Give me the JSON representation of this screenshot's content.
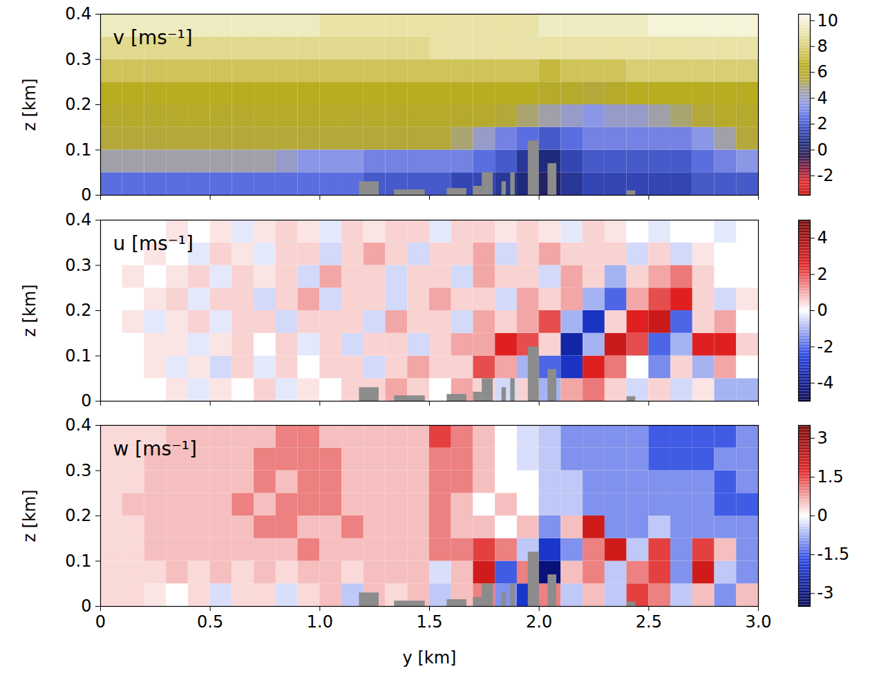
{
  "chart_data": [
    {
      "type": "heatmap",
      "title": "v [ms⁻¹]",
      "ylabel": "z [km]",
      "tick_labels": "y",
      "xlim": [
        0,
        3
      ],
      "xticks": [
        0,
        0.5,
        {
          "value": 1,
          "label": "1.0"
        },
        1.5,
        {
          "value": 2,
          "label": "2.0"
        },
        2.5,
        {
          "value": 3,
          "label": "3.0"
        }
      ],
      "ylim": [
        0,
        0.4
      ],
      "yticks": [
        0,
        0.1,
        0.2,
        0.3,
        0.4
      ],
      "x_edges": [
        0,
        0.1,
        0.2,
        0.3,
        0.4,
        0.5,
        0.6,
        0.7,
        0.8,
        0.9,
        1,
        1.1,
        1.2,
        1.3,
        1.4,
        1.5,
        1.6,
        1.7,
        1.8,
        1.9,
        2,
        2.1,
        2.2,
        2.3,
        2.4,
        2.5,
        2.6,
        2.7,
        2.8,
        2.9,
        3
      ],
      "y_edges": [
        0,
        0.05,
        0.1,
        0.15,
        0.2,
        0.25,
        0.3,
        0.35,
        0.4
      ],
      "cells": [
        [
          2.5,
          2.5,
          2.5,
          2.5,
          2.5,
          2.5,
          2.5,
          2.5,
          2.5,
          2.5,
          2.5,
          2.5,
          2,
          2,
          2,
          2,
          1.5,
          1.5,
          1,
          0.5,
          0,
          1,
          1.5,
          1.5,
          1.5,
          1.5,
          1.5,
          2,
          2,
          2
        ],
        [
          4.5,
          4.5,
          4.5,
          4.5,
          4.5,
          4.5,
          4.5,
          4.5,
          4,
          3.5,
          3.5,
          3.5,
          3,
          3,
          3,
          3,
          3,
          2.5,
          2,
          1,
          0.5,
          1.5,
          2,
          2,
          2,
          2,
          2,
          2.5,
          3,
          3.5
        ],
        [
          5.5,
          5.5,
          5.5,
          5.5,
          5.5,
          5.5,
          5.5,
          5.5,
          5.5,
          5.5,
          5.5,
          5.5,
          5.5,
          5.5,
          5.5,
          5.5,
          5,
          4,
          3,
          2.5,
          2,
          2.5,
          3,
          3,
          3,
          3,
          3,
          3.5,
          4.5,
          5.5
        ],
        [
          6,
          6,
          6,
          6,
          6,
          6,
          6,
          6,
          6,
          6,
          6,
          6,
          6,
          6,
          6,
          6,
          6,
          6,
          5.5,
          5,
          4.5,
          4,
          3.5,
          4,
          4,
          4.5,
          5,
          5.5,
          6,
          6
        ],
        [
          6.5,
          6.5,
          6.5,
          6.5,
          6.5,
          6.5,
          6.5,
          6.5,
          6.5,
          6.5,
          6.5,
          6.5,
          6.5,
          6.5,
          6.5,
          6.5,
          6.5,
          6.5,
          6.5,
          6.5,
          6,
          6,
          5.5,
          6,
          6.5,
          6.5,
          6.5,
          6.5,
          6.5,
          6.5
        ],
        [
          7.5,
          7.5,
          7.5,
          7.5,
          7.5,
          7.5,
          7.5,
          7.5,
          7.5,
          7.5,
          7.5,
          7.5,
          7.5,
          7.5,
          7.5,
          7.5,
          7.5,
          7.5,
          7.5,
          7.5,
          7,
          7.5,
          7.5,
          7.5,
          8,
          8,
          8,
          8,
          8,
          8
        ],
        [
          8.5,
          8.5,
          8.5,
          8.5,
          8.5,
          8.5,
          8.5,
          8.5,
          8.5,
          8.5,
          8.5,
          8.5,
          8.5,
          8.5,
          8.5,
          9,
          9,
          9,
          9,
          9,
          9,
          9,
          9,
          9,
          9,
          9,
          9,
          9,
          9,
          9
        ],
        [
          9.5,
          9.5,
          9.5,
          9.5,
          9.5,
          9.5,
          9.5,
          9.5,
          9.5,
          9.5,
          9,
          9,
          9,
          9,
          9,
          9,
          9,
          9,
          9,
          9,
          9.5,
          9.5,
          9.5,
          9.5,
          9.5,
          10,
          10,
          10,
          10,
          10
        ]
      ],
      "buildings": [
        {
          "y0": 1.18,
          "y1": 1.27,
          "height": 0.03
        },
        {
          "y0": 1.34,
          "y1": 1.48,
          "height": 0.012
        },
        {
          "y0": 1.58,
          "y1": 1.67,
          "height": 0.015
        },
        {
          "y0": 1.7,
          "y1": 1.74,
          "height": 0.02
        },
        {
          "y0": 1.74,
          "y1": 1.79,
          "height": 0.05
        },
        {
          "y0": 1.83,
          "y1": 1.85,
          "height": 0.03
        },
        {
          "y0": 1.87,
          "y1": 1.89,
          "height": 0.05
        },
        {
          "y0": 1.95,
          "y1": 2.0,
          "height": 0.12
        },
        {
          "y0": 2.04,
          "y1": 2.08,
          "height": 0.07
        },
        {
          "y0": 2.4,
          "y1": 2.44,
          "height": 0.01
        }
      ],
      "colorbar": {
        "range": [
          -3.5,
          10.5
        ],
        "ticks": [
          -2,
          0,
          2,
          4,
          6,
          8,
          10
        ],
        "colors": [
          "#c81010",
          "#e02828",
          "#8a1a3a",
          "#2a1850",
          "#1e2a7a",
          "#3446b4",
          "#5a6ee0",
          "#8c96e6",
          "#a0a0a8",
          "#b4a83a",
          "#b8ac20",
          "#cfc35a",
          "#e0d98e",
          "#efebc0",
          "#fbfaf0"
        ]
      }
    },
    {
      "type": "heatmap",
      "title": "u [ms⁻¹]",
      "ylabel": "z [km]",
      "tick_labels": "y",
      "xlim": [
        0,
        3
      ],
      "xticks": [
        0,
        0.5,
        {
          "value": 1,
          "label": "1.0"
        },
        1.5,
        {
          "value": 2,
          "label": "2.0"
        },
        2.5,
        {
          "value": 3,
          "label": "3.0"
        }
      ],
      "ylim": [
        0,
        0.4
      ],
      "yticks": [
        0,
        0.1,
        0.2,
        0.3,
        0.4
      ],
      "x_edges": [
        0,
        0.1,
        0.2,
        0.3,
        0.4,
        0.5,
        0.6,
        0.7,
        0.8,
        0.9,
        1,
        1.1,
        1.2,
        1.3,
        1.4,
        1.5,
        1.6,
        1.7,
        1.8,
        1.9,
        2,
        2.1,
        2.2,
        2.3,
        2.4,
        2.5,
        2.6,
        2.7,
        2.8,
        2.9,
        3
      ],
      "y_edges": [
        0,
        0.05,
        0.1,
        0.15,
        0.2,
        0.25,
        0.3,
        0.35,
        0.4
      ],
      "cells": [
        [
          0,
          0,
          0,
          0.3,
          -0.3,
          0.3,
          0,
          0.5,
          -0.3,
          0.3,
          0,
          0.5,
          0.5,
          1,
          0.5,
          0,
          1,
          0.5,
          -0.5,
          0.5,
          -1,
          1,
          1.5,
          0.5,
          -0.5,
          0.5,
          -0.5,
          0.3,
          -1,
          -1
        ],
        [
          0,
          0,
          0.3,
          -0.3,
          0.3,
          -0.5,
          0.5,
          -0.3,
          0.5,
          0,
          0.5,
          0.5,
          -0.5,
          0.5,
          1,
          0.5,
          0.5,
          2,
          1,
          -1,
          -2,
          -3,
          2.5,
          1.5,
          0,
          -1.5,
          0.5,
          -1,
          1,
          0
        ],
        [
          0,
          0,
          0.3,
          0.3,
          -0.3,
          0.3,
          0.5,
          0,
          0.5,
          -0.3,
          0.5,
          -0.5,
          0.5,
          0.5,
          -0.5,
          0.5,
          1,
          1,
          2.5,
          2,
          0.5,
          -3.5,
          -1,
          3,
          2,
          -2,
          -1,
          2.5,
          2.5,
          0.5
        ],
        [
          0,
          0.3,
          -0.3,
          0.3,
          0.5,
          -0.3,
          0.5,
          0.5,
          -0.5,
          0.5,
          0.5,
          0.5,
          -0.5,
          1,
          0.5,
          0.5,
          -0.5,
          1,
          0.5,
          1,
          2,
          -1,
          -3,
          0.5,
          2.5,
          3,
          -2,
          0.5,
          1,
          0
        ],
        [
          0,
          0,
          0.3,
          0.5,
          -0.3,
          0.5,
          0.5,
          -0.5,
          0.5,
          1,
          -0.5,
          0.5,
          0.5,
          -0.5,
          0.5,
          1,
          0.5,
          0.5,
          -0.5,
          1,
          0.5,
          1,
          -1,
          -2,
          1,
          2,
          2.5,
          0.5,
          -0.5,
          0.3
        ],
        [
          0,
          0.3,
          0,
          0.3,
          0.5,
          -0.3,
          0.5,
          0.3,
          0.5,
          -0.5,
          1,
          0.5,
          0.5,
          -0.5,
          0.5,
          0.5,
          -0.5,
          1,
          0.5,
          0.5,
          -0.5,
          1,
          0.5,
          -1,
          0.5,
          1,
          1.5,
          0.5,
          0,
          0
        ],
        [
          0,
          0,
          0.3,
          0,
          -0.3,
          0.5,
          0.3,
          -0.3,
          0.5,
          0.5,
          -0.5,
          0.5,
          1,
          0.5,
          -0.5,
          0.5,
          0.5,
          1,
          -0.5,
          0.5,
          1,
          0.5,
          0.5,
          0.5,
          -0.5,
          0.5,
          -0.5,
          0.3,
          0,
          0
        ],
        [
          0,
          0,
          0,
          0.3,
          0,
          0.3,
          -0.3,
          0.3,
          0.5,
          0.3,
          -0.3,
          0.5,
          0.3,
          0.5,
          0.5,
          -0.3,
          0.5,
          0.5,
          0.3,
          0.5,
          0.3,
          -0.3,
          0.5,
          0.3,
          0,
          -0.3,
          0,
          0,
          -0.3,
          0
        ]
      ],
      "buildings": [
        {
          "y0": 1.18,
          "y1": 1.27,
          "height": 0.03
        },
        {
          "y0": 1.34,
          "y1": 1.48,
          "height": 0.012
        },
        {
          "y0": 1.58,
          "y1": 1.67,
          "height": 0.015
        },
        {
          "y0": 1.7,
          "y1": 1.74,
          "height": 0.02
        },
        {
          "y0": 1.74,
          "y1": 1.79,
          "height": 0.05
        },
        {
          "y0": 1.83,
          "y1": 1.85,
          "height": 0.03
        },
        {
          "y0": 1.87,
          "y1": 1.89,
          "height": 0.05
        },
        {
          "y0": 1.95,
          "y1": 2.0,
          "height": 0.12
        },
        {
          "y0": 2.04,
          "y1": 2.08,
          "height": 0.07
        },
        {
          "y0": 2.4,
          "y1": 2.44,
          "height": 0.01
        }
      ],
      "colorbar": {
        "range": [
          -5,
          5
        ],
        "ticks": [
          -4,
          -2,
          0,
          2,
          4
        ],
        "colors": [
          "#000050",
          "#2040e0",
          "#ffffff",
          "#e02020",
          "#700000"
        ]
      }
    },
    {
      "type": "heatmap",
      "title": "w [ms⁻¹]",
      "xlabel": "y [km]",
      "ylabel": "z [km]",
      "xlim": [
        0,
        3
      ],
      "xticks": [
        0,
        0.5,
        {
          "value": 1,
          "label": "1.0"
        },
        1.5,
        {
          "value": 2,
          "label": "2.0"
        },
        2.5,
        {
          "value": 3,
          "label": "3.0"
        }
      ],
      "ylim": [
        0,
        0.4
      ],
      "yticks": [
        0,
        0.1,
        0.2,
        0.3,
        0.4
      ],
      "x_edges": [
        0,
        0.1,
        0.2,
        0.3,
        0.4,
        0.5,
        0.6,
        0.7,
        0.8,
        0.9,
        1,
        1.1,
        1.2,
        1.3,
        1.4,
        1.5,
        1.6,
        1.7,
        1.8,
        1.9,
        2,
        2.1,
        2.2,
        2.3,
        2.4,
        2.5,
        2.6,
        2.7,
        2.8,
        2.9,
        3
      ],
      "y_edges": [
        0,
        0.05,
        0.1,
        0.15,
        0.2,
        0.25,
        0.3,
        0.35,
        0.4
      ],
      "cells": [
        [
          0.3,
          0.3,
          0.2,
          0,
          0.3,
          -0.3,
          0.3,
          0.3,
          -0.3,
          0.3,
          0.5,
          -0.5,
          0.5,
          0.3,
          0.5,
          -0.5,
          0.5,
          1,
          -1,
          -2,
          1,
          -0.5,
          0.5,
          -0.5,
          1.5,
          1,
          -0.5,
          0.5,
          -1,
          0.5
        ],
        [
          0.3,
          0.3,
          0.3,
          0.5,
          0.3,
          0.5,
          0.3,
          0.5,
          0.3,
          0.5,
          0.5,
          0.3,
          0.5,
          0.5,
          0.5,
          -0.3,
          0.5,
          2,
          -1.5,
          1,
          -3,
          0.5,
          1,
          -0.5,
          1,
          1.5,
          -1,
          2,
          -0.5,
          -1
        ],
        [
          0.3,
          0.3,
          0.5,
          0.5,
          0.5,
          0.5,
          0.5,
          0.5,
          0.5,
          1,
          0.5,
          0.5,
          0.5,
          0.5,
          0.5,
          1,
          1,
          1.5,
          1,
          -0.5,
          -2,
          -1,
          1,
          2,
          -0.5,
          1.5,
          -1,
          1.5,
          0.5,
          -1
        ],
        [
          0.3,
          0.3,
          0.5,
          0.5,
          0.5,
          0.5,
          0.5,
          1,
          1,
          0.5,
          0.5,
          1,
          0.5,
          0.5,
          0.5,
          1,
          0.5,
          0.5,
          0,
          0.5,
          -1,
          0.5,
          2,
          -1,
          -1,
          -0.5,
          -1,
          -1,
          -1,
          -1
        ],
        [
          0.3,
          0.5,
          0.5,
          0.5,
          0.5,
          0.5,
          1,
          0.5,
          1,
          1,
          1,
          0.5,
          0.5,
          0.5,
          0.5,
          1,
          0.5,
          0,
          0.5,
          0,
          -0.5,
          -0.5,
          -1,
          -1,
          -1,
          -1,
          -1,
          -1,
          -1.5,
          -1.5
        ],
        [
          0.3,
          0.3,
          0.5,
          0.5,
          0.5,
          0.5,
          0.5,
          1,
          0.5,
          1,
          1,
          0.5,
          0.5,
          0.5,
          0.5,
          1,
          1,
          0.5,
          0,
          0,
          -0.5,
          -0.5,
          -1,
          -1,
          -1,
          -1,
          -1,
          -1,
          -1.5,
          -1
        ],
        [
          0.3,
          0.3,
          0.5,
          0.5,
          0.5,
          0.5,
          0.5,
          1,
          1,
          1,
          1,
          0.5,
          0.5,
          0.5,
          0.5,
          1,
          1,
          0.5,
          0,
          -0.3,
          -0.5,
          -1,
          -1,
          -1,
          -1,
          -1.5,
          -1.5,
          -1.5,
          -1,
          -1
        ],
        [
          0.3,
          0.3,
          0.3,
          0.5,
          0.5,
          0.5,
          0.5,
          0.5,
          1,
          1,
          0.5,
          0.5,
          0.5,
          0.5,
          0.5,
          1.5,
          1,
          0.5,
          0,
          -0.3,
          -0.5,
          -1,
          -1,
          -1,
          -1,
          -1.5,
          -1.5,
          -1.5,
          -1.5,
          -1
        ]
      ],
      "buildings": [
        {
          "y0": 1.18,
          "y1": 1.27,
          "height": 0.03
        },
        {
          "y0": 1.34,
          "y1": 1.48,
          "height": 0.012
        },
        {
          "y0": 1.58,
          "y1": 1.67,
          "height": 0.015
        },
        {
          "y0": 1.7,
          "y1": 1.74,
          "height": 0.02
        },
        {
          "y0": 1.74,
          "y1": 1.79,
          "height": 0.05
        },
        {
          "y0": 1.83,
          "y1": 1.85,
          "height": 0.03
        },
        {
          "y0": 1.87,
          "y1": 1.89,
          "height": 0.05
        },
        {
          "y0": 1.95,
          "y1": 2.0,
          "height": 0.12
        },
        {
          "y0": 2.04,
          "y1": 2.08,
          "height": 0.07
        },
        {
          "y0": 2.4,
          "y1": 2.44,
          "height": 0.01
        }
      ],
      "colorbar": {
        "range": [
          -3.5,
          3.5
        ],
        "ticks": [
          -3,
          -1.5,
          0,
          1.5,
          3
        ],
        "colors": [
          "#000050",
          "#2040e0",
          "#ffffff",
          "#e02020",
          "#700000"
        ]
      }
    }
  ]
}
